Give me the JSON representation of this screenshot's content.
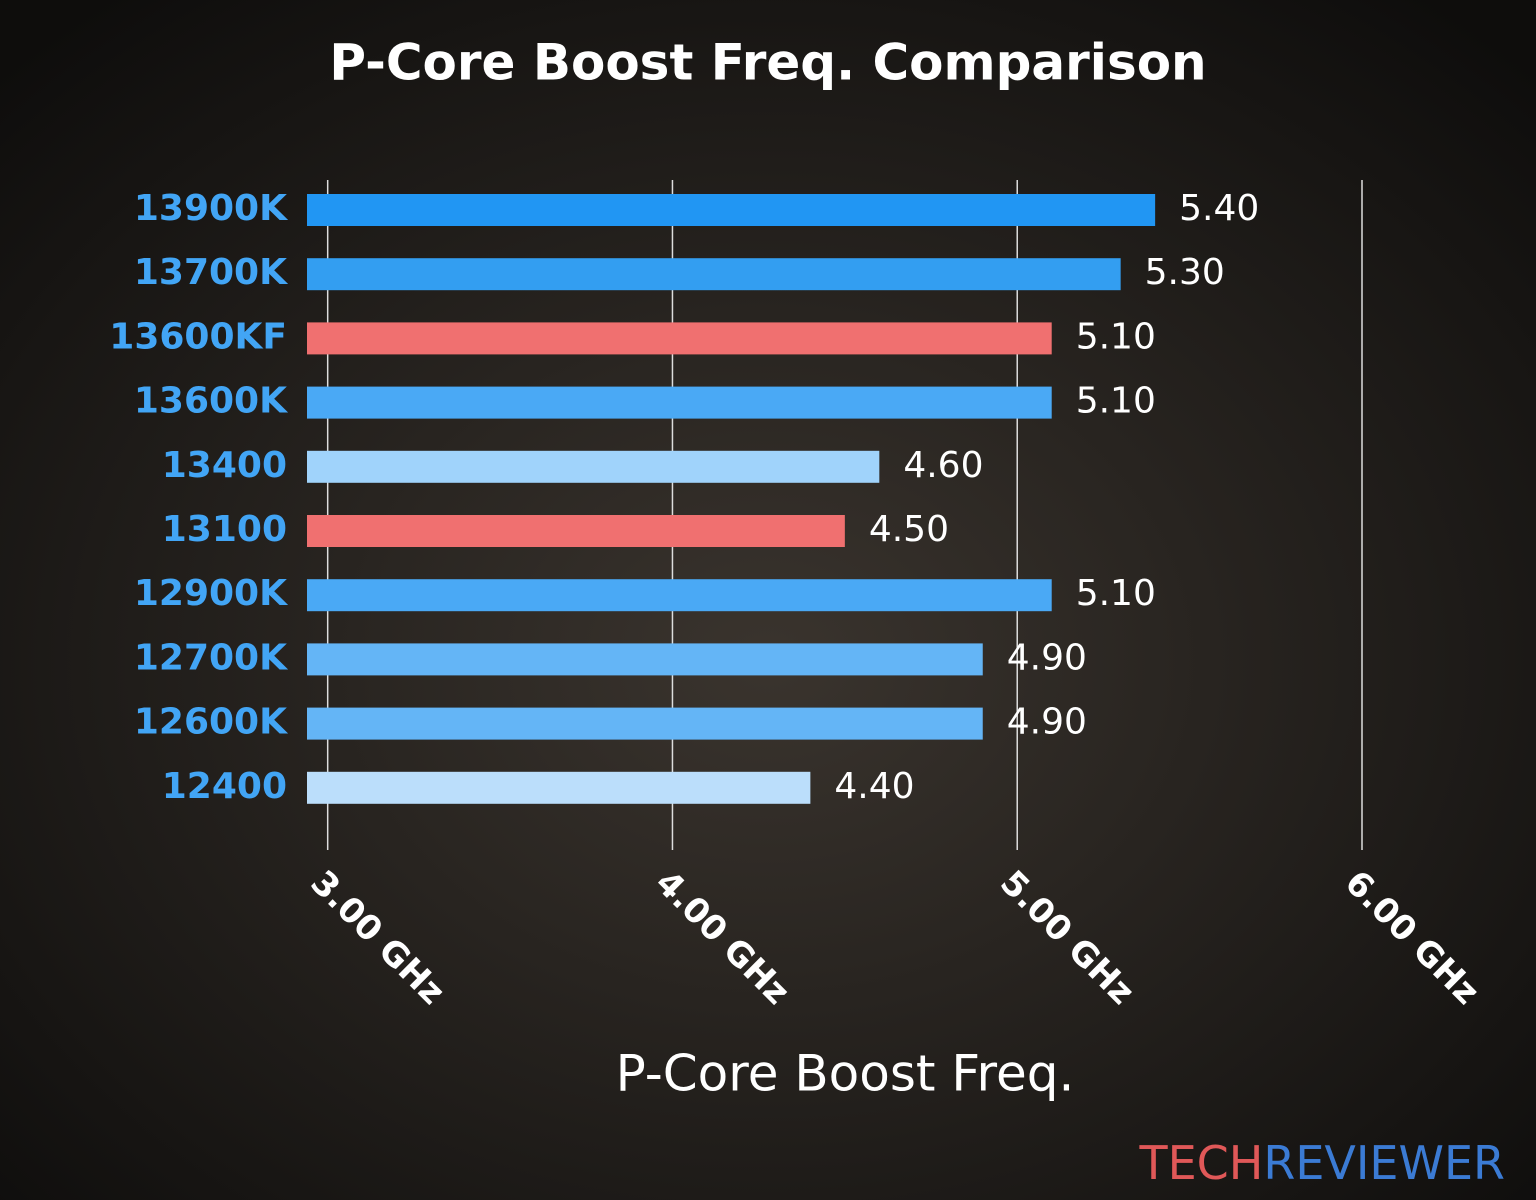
{
  "chart_data": {
    "type": "bar",
    "orientation": "horizontal",
    "title": "P-Core Boost Freq. Comparison",
    "x_label": "P-Core Boost Freq.",
    "categories": [
      "13900K",
      "13700K",
      "13600KF",
      "13600K",
      "13400",
      "13100",
      "12900K",
      "12700K",
      "12600K",
      "12400"
    ],
    "values": [
      5.4,
      5.3,
      5.1,
      5.1,
      4.6,
      4.5,
      5.1,
      4.9,
      4.9,
      4.4
    ],
    "value_labels": [
      "5.40",
      "5.30",
      "5.10",
      "5.10",
      "4.60",
      "4.50",
      "5.10",
      "4.90",
      "4.90",
      "4.40"
    ],
    "colors": [
      "#2196f3",
      "#339ef1",
      "#f07070",
      "#4aa9f5",
      "#a0d3fb",
      "#f07070",
      "#4aa9f5",
      "#64b5f6",
      "#64b5f6",
      "#bbdefb"
    ],
    "category_color": "#42a5f5",
    "xlim": [
      2.94,
      6.0
    ],
    "xticks": [
      {
        "value": 3,
        "label": "3.00 GHz"
      },
      {
        "value": 4,
        "label": "4.00 GHz"
      },
      {
        "value": 5,
        "label": "5.00 GHz"
      },
      {
        "value": 6,
        "label": "6.00 GHz"
      }
    ],
    "grid": true
  },
  "watermark": {
    "first": "TECH",
    "second": "REVIEWER"
  }
}
